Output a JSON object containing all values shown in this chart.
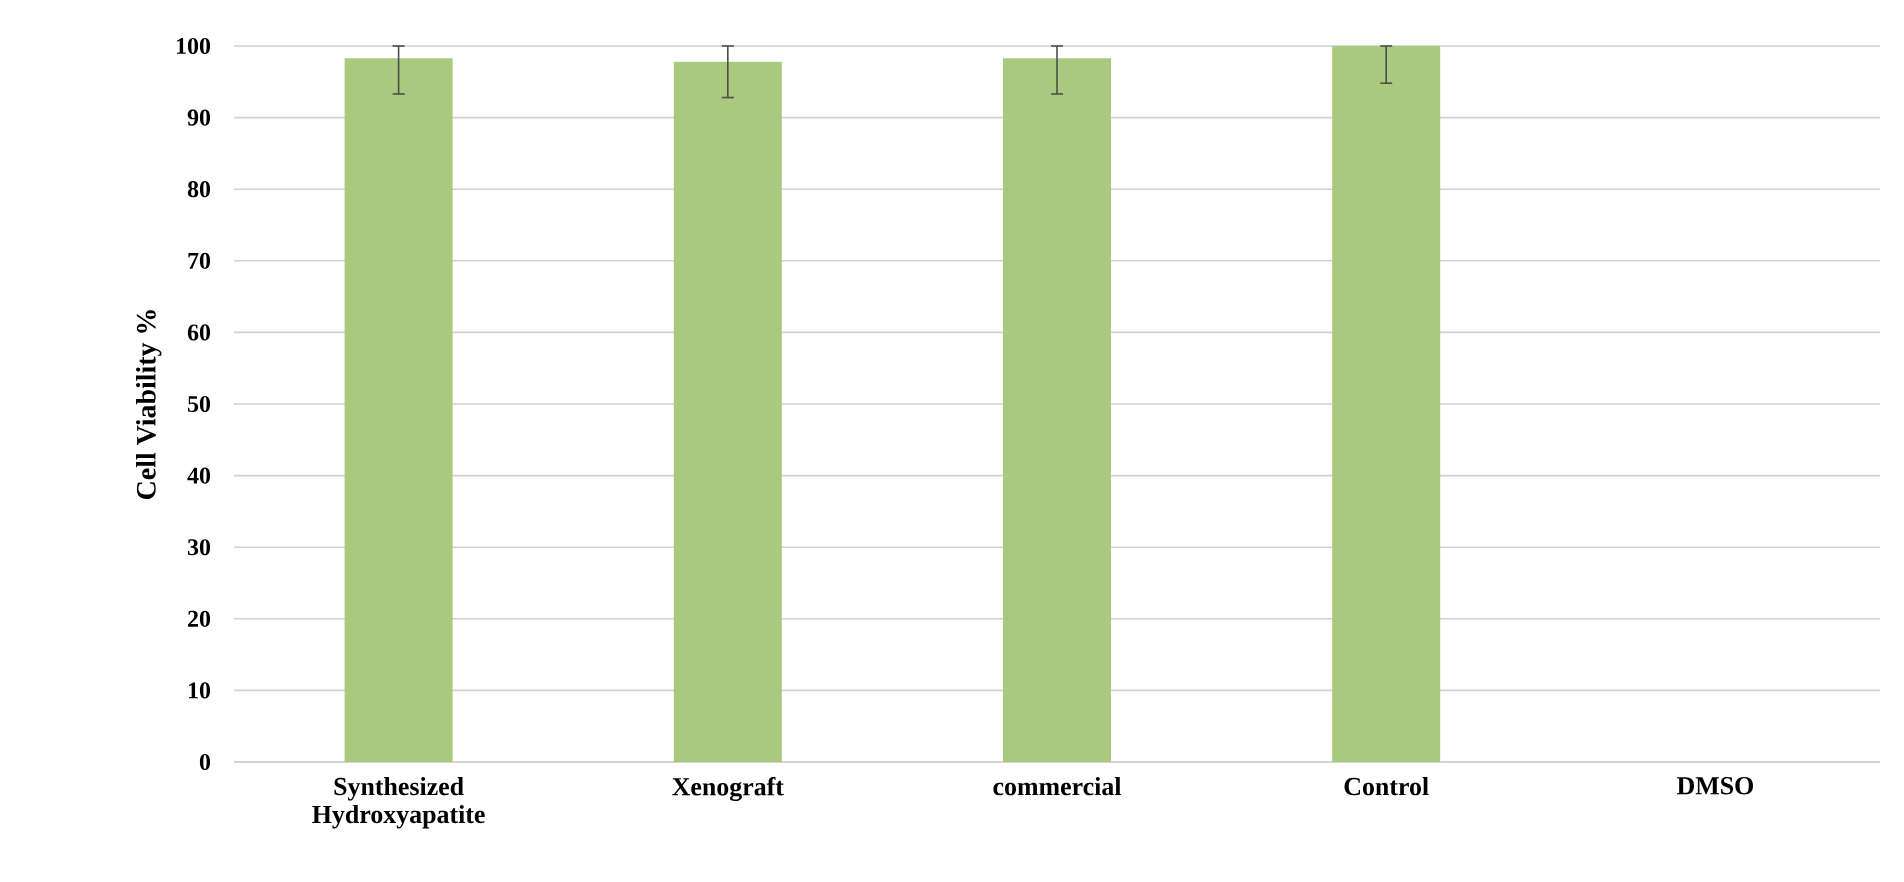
{
  "chart_data": {
    "type": "bar",
    "ylabel": "Cell Viability %",
    "categories": [
      "Synthesized Hydroxyapatite",
      "Xenograft",
      "commercial",
      "Control",
      "DMSO"
    ],
    "values": [
      98.3,
      97.8,
      98.3,
      100,
      0
    ],
    "errors": [
      [
        93.3,
        100
      ],
      [
        92.8,
        100
      ],
      [
        93.3,
        100
      ],
      [
        94.8,
        100
      ],
      null
    ],
    "color": "#a9c97f",
    "ylim": [
      0,
      100
    ],
    "yticks": [
      0,
      10,
      20,
      30,
      40,
      50,
      60,
      70,
      80,
      90,
      100
    ],
    "grid": "y"
  }
}
